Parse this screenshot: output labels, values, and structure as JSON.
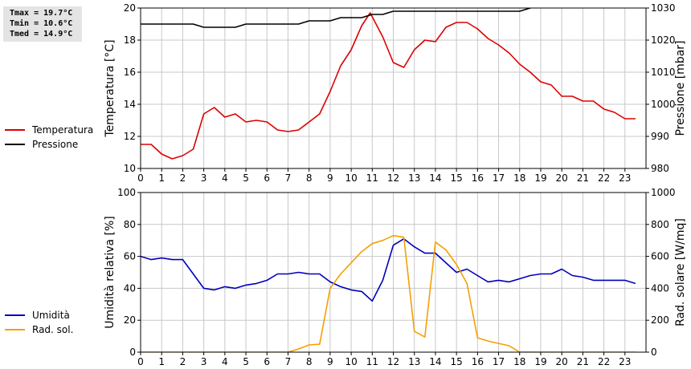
{
  "stats": {
    "tmax": "Tmax = 19.7°C",
    "tmin": "Tmin = 10.6°C",
    "tmed": "Tmed = 14.9°C"
  },
  "legend_top": [
    {
      "label": "Temperatura",
      "color": "#dd0000"
    },
    {
      "label": "Pressione",
      "color": "#000000"
    }
  ],
  "legend_bottom": [
    {
      "label": "Umidità",
      "color": "#0000bb"
    },
    {
      "label": "Rad. sol.",
      "color": "#f5a000"
    }
  ],
  "chart_data": [
    {
      "type": "line",
      "xlim": [
        0,
        24
      ],
      "x_ticks": [
        0,
        1,
        2,
        3,
        4,
        5,
        6,
        7,
        8,
        9,
        10,
        11,
        12,
        13,
        14,
        15,
        16,
        17,
        18,
        19,
        20,
        21,
        22,
        23
      ],
      "ylabel": "Temperatura [°C]",
      "ylim": [
        10,
        20
      ],
      "y_ticks": [
        10,
        12,
        14,
        16,
        18,
        20
      ],
      "y2label": "Pressione [mbar]",
      "y2lim": [
        980,
        1030
      ],
      "y2_ticks": [
        980,
        990,
        1000,
        1010,
        1020,
        1030
      ],
      "grid": true,
      "series": [
        {
          "name": "Temperatura",
          "axis": "left",
          "color": "#dd0000",
          "x": [
            0,
            0.5,
            1,
            1.5,
            2,
            2.5,
            3,
            3.5,
            4,
            4.5,
            5,
            5.5,
            6,
            6.5,
            7,
            7.5,
            8,
            8.5,
            9,
            9.5,
            10,
            10.5,
            10.9,
            11.5,
            12,
            12.5,
            13,
            13.5,
            14,
            14.5,
            15,
            15.5,
            16,
            16.5,
            17,
            17.5,
            18,
            18.5,
            19,
            19.5,
            20,
            20.5,
            21,
            21.5,
            22,
            22.5,
            23,
            23.5
          ],
          "y": [
            11.5,
            11.5,
            10.9,
            10.6,
            10.8,
            11.2,
            13.4,
            13.8,
            13.2,
            13.4,
            12.9,
            13.0,
            12.9,
            12.4,
            12.3,
            12.4,
            12.9,
            13.4,
            14.8,
            16.4,
            17.4,
            18.9,
            19.7,
            18.2,
            16.6,
            16.3,
            17.4,
            18.0,
            17.9,
            18.8,
            19.1,
            19.1,
            18.7,
            18.1,
            17.7,
            17.2,
            16.5,
            16.0,
            15.4,
            15.2,
            14.5,
            14.5,
            14.2,
            14.2,
            13.7,
            13.5,
            13.1,
            13.1
          ]
        },
        {
          "name": "Pressione",
          "axis": "right",
          "color": "#000000",
          "x": [
            0,
            1,
            2,
            2.5,
            3,
            4,
            4.5,
            5,
            5.5,
            6,
            7,
            7.5,
            8,
            9,
            9.5,
            10,
            10.5,
            11,
            11.5,
            12,
            12.5,
            13,
            14,
            15,
            16,
            17,
            17.5,
            18,
            18.5,
            19,
            20,
            21,
            22,
            23,
            23.5
          ],
          "y": [
            1025,
            1025,
            1025,
            1025,
            1024,
            1024,
            1024,
            1025,
            1025,
            1025,
            1025,
            1025,
            1026,
            1026,
            1027,
            1027,
            1027,
            1028,
            1028,
            1029,
            1029,
            1029,
            1029,
            1029,
            1029,
            1029,
            1029,
            1029,
            1030,
            1031,
            1031,
            1031,
            1031,
            1031,
            1031
          ]
        }
      ]
    },
    {
      "type": "line",
      "xlim": [
        0,
        24
      ],
      "x_ticks": [
        0,
        1,
        2,
        3,
        4,
        5,
        6,
        7,
        8,
        9,
        10,
        11,
        12,
        13,
        14,
        15,
        16,
        17,
        18,
        19,
        20,
        21,
        22,
        23
      ],
      "ylabel": "Umidità relativa [%]",
      "ylim": [
        0,
        100
      ],
      "y_ticks": [
        0,
        20,
        40,
        60,
        80,
        100
      ],
      "y2label": "Rad. solare [W/mq]",
      "y2lim": [
        0,
        1000
      ],
      "y2_ticks": [
        0,
        200,
        400,
        600,
        800,
        1000
      ],
      "grid": true,
      "series": [
        {
          "name": "Umidità",
          "axis": "left",
          "color": "#0000bb",
          "x": [
            0,
            0.5,
            1,
            1.5,
            2,
            2.5,
            3,
            3.5,
            4,
            4.5,
            5,
            5.5,
            6,
            6.5,
            7,
            7.5,
            8,
            8.5,
            9,
            9.5,
            10,
            10.5,
            11,
            11.5,
            12,
            12.5,
            13,
            13.5,
            14,
            14.5,
            15,
            15.5,
            16,
            16.5,
            17,
            17.5,
            18,
            18.5,
            19,
            19.5,
            20,
            20.5,
            21,
            21.5,
            22,
            22.5,
            23,
            23.5
          ],
          "y": [
            60,
            58,
            59,
            58,
            58,
            49,
            40,
            39,
            41,
            40,
            42,
            43,
            45,
            49,
            49,
            50,
            49,
            49,
            44,
            41,
            39,
            38,
            32,
            45,
            67,
            71,
            66,
            62,
            62,
            56,
            50,
            52,
            48,
            44,
            45,
            44,
            46,
            48,
            49,
            49,
            52,
            48,
            47,
            45,
            45,
            45,
            45,
            43
          ]
        },
        {
          "name": "Rad. sol.",
          "axis": "right",
          "color": "#f5a000",
          "x": [
            0,
            1,
            2,
            3,
            4,
            5,
            6,
            7,
            7.5,
            8,
            8.5,
            9,
            9.5,
            10,
            10.5,
            11,
            11.5,
            12,
            12.5,
            13,
            13.5,
            14,
            14.5,
            15,
            15.5,
            16,
            16.5,
            17,
            17.5,
            18,
            18.5,
            19,
            20,
            21,
            22,
            23,
            23.5
          ],
          "y": [
            0,
            0,
            0,
            0,
            0,
            0,
            0,
            0,
            20,
            45,
            50,
            400,
            490,
            560,
            630,
            680,
            700,
            730,
            720,
            130,
            95,
            690,
            640,
            550,
            430,
            90,
            70,
            55,
            40,
            0,
            0,
            0,
            0,
            0,
            0,
            0,
            0
          ]
        }
      ]
    }
  ]
}
